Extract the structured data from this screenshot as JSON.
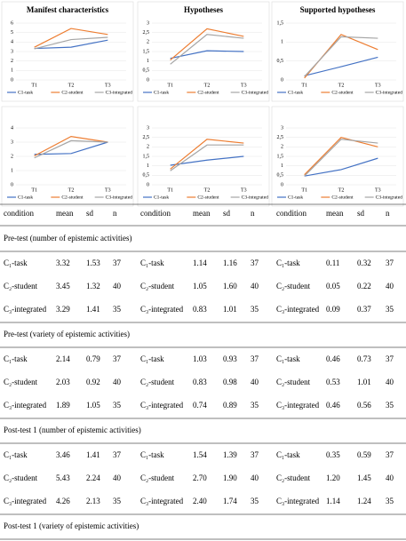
{
  "chart_data": [
    {
      "type": "line",
      "title": "Manifest characteristics",
      "categories": [
        "T1",
        "T2",
        "T3"
      ],
      "ylim": [
        0,
        6
      ],
      "yticks": [
        0,
        1,
        2,
        3,
        4,
        5,
        6
      ],
      "series": [
        {
          "name": "C1-task",
          "color": "#4472c4",
          "values": [
            3.32,
            3.46,
            4.2
          ]
        },
        {
          "name": "C2-student",
          "color": "#ed7d31",
          "values": [
            3.45,
            5.43,
            4.8
          ]
        },
        {
          "name": "C3-integrated",
          "color": "#a5a5a5",
          "values": [
            3.29,
            4.26,
            4.5
          ]
        }
      ]
    },
    {
      "type": "line",
      "title": "Hypotheses",
      "categories": [
        "T1",
        "T2",
        "T3"
      ],
      "ylim": [
        0,
        3
      ],
      "yticks": [
        0,
        {
          "value": 0.5,
          "label": "0,5"
        },
        1,
        {
          "value": 1.5,
          "label": "1,5"
        },
        2,
        {
          "value": 2.5,
          "label": "2,5"
        },
        3
      ],
      "series": [
        {
          "name": "C1-task",
          "color": "#4472c4",
          "values": [
            1.14,
            1.54,
            1.5
          ]
        },
        {
          "name": "C2-student",
          "color": "#ed7d31",
          "values": [
            1.05,
            2.7,
            2.3
          ]
        },
        {
          "name": "C3-integrated",
          "color": "#a5a5a5",
          "values": [
            0.83,
            2.4,
            2.2
          ]
        }
      ]
    },
    {
      "type": "line",
      "title": "Supported hypotheses",
      "categories": [
        "T1",
        "T2",
        "T3"
      ],
      "ylim": [
        0,
        1.5
      ],
      "yticks": [
        0,
        {
          "value": 0.5,
          "label": "0,5"
        },
        1,
        {
          "value": 1.5,
          "label": "1,5"
        }
      ],
      "series": [
        {
          "name": "C1-task",
          "color": "#4472c4",
          "values": [
            0.11,
            0.35,
            0.6
          ]
        },
        {
          "name": "C2-student",
          "color": "#ed7d31",
          "values": [
            0.05,
            1.2,
            0.8
          ]
        },
        {
          "name": "C3-integrated",
          "color": "#a5a5a5",
          "values": [
            0.09,
            1.14,
            1.1
          ]
        }
      ]
    },
    {
      "type": "line",
      "categories": [
        "T1",
        "T2",
        "T3"
      ],
      "ylim": [
        0,
        4
      ],
      "yticks": [
        0,
        1,
        2,
        3,
        4
      ],
      "series": [
        {
          "name": "C1-task",
          "color": "#4472c4",
          "values": [
            2.14,
            2.2,
            3.0
          ]
        },
        {
          "name": "C2-student",
          "color": "#ed7d31",
          "values": [
            2.03,
            3.4,
            3.0
          ]
        },
        {
          "name": "C3-integrated",
          "color": "#a5a5a5",
          "values": [
            1.89,
            3.1,
            3.0
          ]
        }
      ]
    },
    {
      "type": "line",
      "categories": [
        "T1",
        "T2",
        "T3"
      ],
      "ylim": [
        0,
        3
      ],
      "yticks": [
        0,
        {
          "value": 0.5,
          "label": "0,5"
        },
        1,
        {
          "value": 1.5,
          "label": "1,5"
        },
        2,
        {
          "value": 2.5,
          "label": "2,5"
        },
        3
      ],
      "series": [
        {
          "name": "C1-task",
          "color": "#4472c4",
          "values": [
            1.03,
            1.3,
            1.5
          ]
        },
        {
          "name": "C2-student",
          "color": "#ed7d31",
          "values": [
            0.83,
            2.4,
            2.2
          ]
        },
        {
          "name": "C3-integrated",
          "color": "#a5a5a5",
          "values": [
            0.74,
            2.1,
            2.1
          ]
        }
      ]
    },
    {
      "type": "line",
      "categories": [
        "T1",
        "T2",
        "T3"
      ],
      "ylim": [
        0,
        3
      ],
      "yticks": [
        0,
        {
          "value": 0.5,
          "label": "0,5"
        },
        1,
        {
          "value": 1.5,
          "label": "1,5"
        },
        2,
        {
          "value": 2.5,
          "label": "2,5"
        },
        3
      ],
      "series": [
        {
          "name": "C1-task",
          "color": "#4472c4",
          "values": [
            0.46,
            0.8,
            1.4
          ]
        },
        {
          "name": "C2-student",
          "color": "#ed7d31",
          "values": [
            0.53,
            2.5,
            2.0
          ]
        },
        {
          "name": "C3-integrated",
          "color": "#a5a5a5",
          "values": [
            0.46,
            2.4,
            2.2
          ]
        }
      ]
    }
  ],
  "table": {
    "header": [
      "condition",
      "mean",
      "sd",
      "n",
      "condition",
      "mean",
      "sd",
      "n",
      "condition",
      "mean",
      "sd",
      "n"
    ],
    "sections": [
      {
        "title": "Pre-test (number of epistemic activities)",
        "rows": [
          [
            "C₁-task",
            "3.32",
            "1.53",
            "37",
            "C₁-task",
            "1.14",
            "1.16",
            "37",
            "C₁-task",
            "0.11",
            "0.32",
            "37"
          ],
          [
            "C₂-student",
            "3.45",
            "1.32",
            "40",
            "C₂-student",
            "1.05",
            "1.60",
            "40",
            "C₂-student",
            "0.05",
            "0.22",
            "40"
          ],
          [
            "C₃-integrated",
            "3.29",
            "1.41",
            "35",
            "C₃-integrated",
            "0.83",
            "1.01",
            "35",
            "C₃-integrated",
            "0.09",
            "0.37",
            "35"
          ]
        ]
      },
      {
        "title": "Pre-test (variety of epistemic activities)",
        "rows": [
          [
            "C₁-task",
            "2.14",
            "0.79",
            "37",
            "C₁-task",
            "1.03",
            "0.93",
            "37",
            "C₁-task",
            "0.46",
            "0.73",
            "37"
          ],
          [
            "C₂-student",
            "2.03",
            "0.92",
            "40",
            "C₂-student",
            "0.83",
            "0.98",
            "40",
            "C₂-student",
            "0.53",
            "1.01",
            "40"
          ],
          [
            "C₃-integrated",
            "1.89",
            "1.05",
            "35",
            "C₃-integrated",
            "0.74",
            "0.89",
            "35",
            "C₃-integrated",
            "0.46",
            "0.56",
            "35"
          ]
        ]
      },
      {
        "title": "Post-test 1 (number of epistemic activities)",
        "rows": [
          [
            "C₁-task",
            "3.46",
            "1.41",
            "37",
            "C₁-task",
            "1.54",
            "1.39",
            "37",
            "C₁-task",
            "0.35",
            "0.59",
            "37"
          ],
          [
            "C₂-student",
            "5.43",
            "2.24",
            "40",
            "C₂-student",
            "2.70",
            "1.90",
            "40",
            "C₂-student",
            "1.20",
            "1.45",
            "40"
          ],
          [
            "C₃-integrated",
            "4.26",
            "2.13",
            "35",
            "C₃-integrated",
            "2.40",
            "1.74",
            "35",
            "C₃-integrated",
            "1.14",
            "1.24",
            "35"
          ]
        ]
      },
      {
        "title": "Post-test 1 (variety of epistemic activities)",
        "rows": []
      }
    ]
  }
}
